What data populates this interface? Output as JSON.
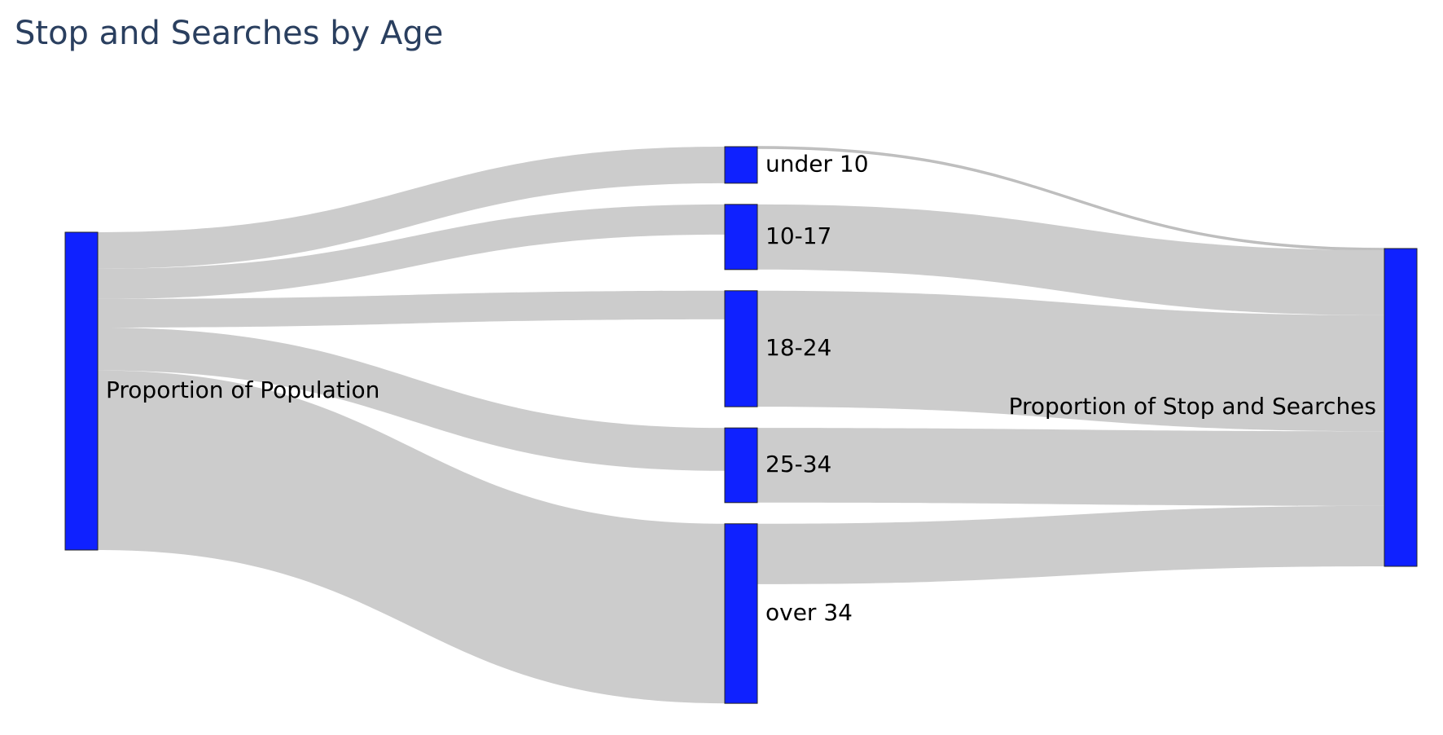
{
  "chart_data": {
    "type": "sankey",
    "title": "Stop and Searches by Age",
    "source": "Proportion of Population",
    "target": "Proportion of Stop and Searches",
    "categories": [
      "under 10",
      "10-17",
      "18-24",
      "25-34",
      "over 34"
    ],
    "population_share": [
      11.5,
      9.5,
      9.0,
      13.5,
      56.5
    ],
    "stop_search_share": [
      0.5,
      20.5,
      36.5,
      23.5,
      19.0
    ]
  },
  "colors": {
    "node": "#0f21ff",
    "link": "#cccccc",
    "title": "#2a3f5f"
  }
}
